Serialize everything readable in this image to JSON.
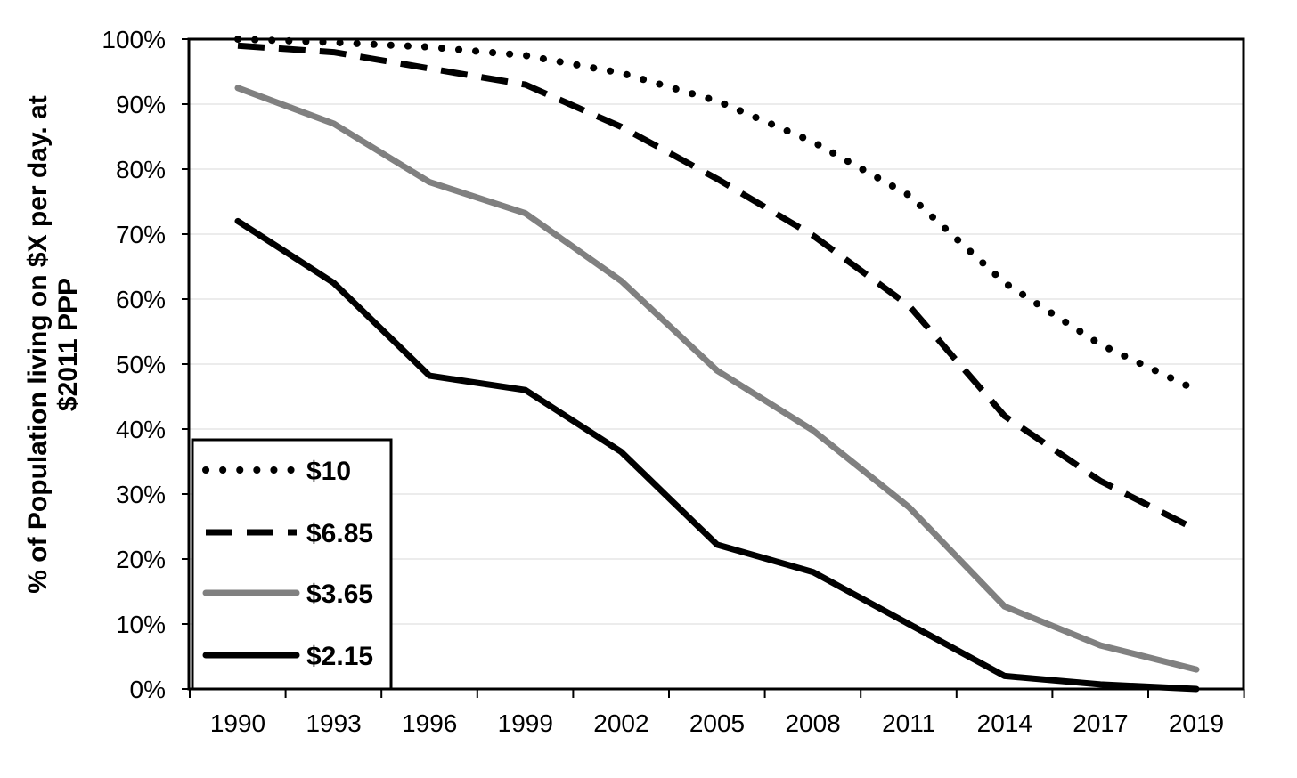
{
  "chart_data": {
    "type": "line",
    "title": "",
    "xlabel": "",
    "ylabel_lines": [
      "% of Population living on $X per day. at",
      "$2011 PPP"
    ],
    "x": [
      "1990",
      "1993",
      "1996",
      "1999",
      "2002",
      "2005",
      "2008",
      "2011",
      "2014",
      "2017",
      "2019"
    ],
    "yticks": [
      "0%",
      "10%",
      "20%",
      "30%",
      "40%",
      "50%",
      "60%",
      "70%",
      "80%",
      "90%",
      "100%"
    ],
    "ylim": [
      0,
      100
    ],
    "y_unit": "percent",
    "grid": true,
    "legend_position": "bottom-left",
    "series": [
      {
        "name": "$10",
        "style": "dotted",
        "color": "#000000",
        "values": [
          100,
          99.5,
          98.8,
          97.5,
          94.8,
          90.5,
          84.2,
          76.0,
          62.5,
          53.0,
          46.0
        ]
      },
      {
        "name": "$6.85",
        "style": "dashed",
        "color": "#000000",
        "values": [
          99.0,
          98.0,
          95.5,
          93.0,
          86.5,
          78.5,
          69.8,
          59.0,
          42.0,
          32.0,
          24.5
        ]
      },
      {
        "name": "$3.65",
        "style": "solid",
        "color": "#808080",
        "values": [
          92.5,
          87.0,
          78.0,
          73.2,
          62.8,
          49.0,
          39.8,
          28.0,
          12.7,
          6.7,
          3.0
        ]
      },
      {
        "name": "$2.15",
        "style": "solid",
        "color": "#000000",
        "values": [
          72.0,
          62.5,
          48.2,
          46.0,
          36.5,
          22.2,
          18.0,
          10.0,
          2.0,
          0.7,
          0.0
        ]
      }
    ]
  }
}
